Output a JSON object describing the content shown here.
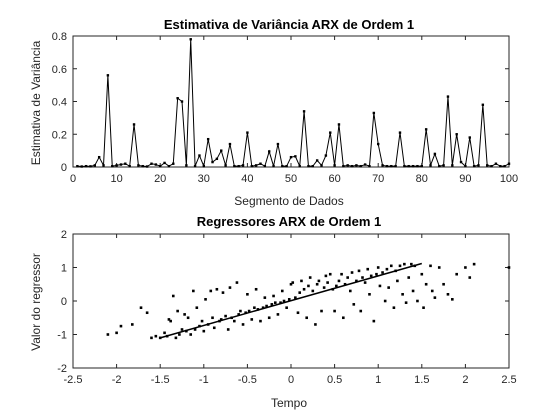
{
  "chart_data": [
    {
      "type": "line",
      "title": "Estimativa de Variância ARX de Ordem 1",
      "xlabel": "Segmento de Dados",
      "ylabel": "Estimativa de Variância",
      "xlim": [
        0,
        100
      ],
      "ylim": [
        0,
        0.8
      ],
      "xticks": [
        0,
        10,
        20,
        30,
        40,
        50,
        60,
        70,
        80,
        90,
        100
      ],
      "yticks": [
        0,
        0.2,
        0.4,
        0.6,
        0.8
      ],
      "grid": false,
      "marker": "dot",
      "x": [
        1,
        2,
        3,
        4,
        5,
        6,
        7,
        8,
        9,
        10,
        11,
        12,
        13,
        14,
        15,
        16,
        17,
        18,
        19,
        20,
        21,
        22,
        23,
        24,
        25,
        26,
        27,
        28,
        29,
        30,
        31,
        32,
        33,
        34,
        35,
        36,
        37,
        38,
        39,
        40,
        41,
        42,
        43,
        44,
        45,
        46,
        47,
        48,
        49,
        50,
        51,
        52,
        53,
        54,
        55,
        56,
        57,
        58,
        59,
        60,
        61,
        62,
        63,
        64,
        65,
        66,
        67,
        68,
        69,
        70,
        71,
        72,
        73,
        74,
        75,
        76,
        77,
        78,
        79,
        80,
        81,
        82,
        83,
        84,
        85,
        86,
        87,
        88,
        89,
        90,
        91,
        92,
        93,
        94,
        95,
        96,
        97,
        98,
        99,
        100
      ],
      "y": [
        0.005,
        0.003,
        0.005,
        0.004,
        0.01,
        0.06,
        0.01,
        0.56,
        0.005,
        0.01,
        0.015,
        0.02,
        0.005,
        0.26,
        0.01,
        0.005,
        0.003,
        0.02,
        0.015,
        0.005,
        0.025,
        0.005,
        0.02,
        0.42,
        0.4,
        0.01,
        0.78,
        0.005,
        0.07,
        0.005,
        0.17,
        0.03,
        0.05,
        0.1,
        0.01,
        0.14,
        0.005,
        0.005,
        0.01,
        0.21,
        0.005,
        0.01,
        0.02,
        0.005,
        0.095,
        0.005,
        0.14,
        0.005,
        0.005,
        0.06,
        0.065,
        0.005,
        0.34,
        0.005,
        0.005,
        0.04,
        0.01,
        0.07,
        0.21,
        0.01,
        0.26,
        0.005,
        0.01,
        0.005,
        0.01,
        0.005,
        0.015,
        0.005,
        0.33,
        0.14,
        0.01,
        0.005,
        0.005,
        0.005,
        0.21,
        0.005,
        0.005,
        0.005,
        0.005,
        0.005,
        0.23,
        0.01,
        0.08,
        0.005,
        0.01,
        0.43,
        0.01,
        0.2,
        0.03,
        0.005,
        0.18,
        0.005,
        0.01,
        0.38,
        0.01,
        0.005,
        0.02,
        0.005,
        0.005,
        0.02
      ]
    },
    {
      "type": "scatter",
      "title": "Regressores ARX de Ordem 1",
      "xlabel": "Tempo",
      "ylabel": "Valor do regressor",
      "xlim": [
        -2.5,
        2.5
      ],
      "ylim": [
        -2,
        2
      ],
      "xticks": [
        -2.5,
        -2,
        -1.5,
        -1,
        -0.5,
        0,
        0.5,
        1,
        1.5,
        2,
        2.5
      ],
      "yticks": [
        -2,
        -1,
        0,
        1,
        2
      ],
      "grid": false,
      "marker": "dot",
      "trend": {
        "x": [
          -1.5,
          1.5
        ],
        "y": [
          -1.1,
          1.12
        ]
      },
      "points": [
        [
          -2.1,
          -1.0
        ],
        [
          -2.0,
          -0.95
        ],
        [
          -1.95,
          -0.75
        ],
        [
          -1.82,
          -0.7
        ],
        [
          -1.72,
          -0.2
        ],
        [
          -1.65,
          -0.35
        ],
        [
          -1.6,
          -1.1
        ],
        [
          -1.55,
          -1.05
        ],
        [
          -1.5,
          -1.1
        ],
        [
          -1.45,
          -0.95
        ],
        [
          -1.42,
          -1.05
        ],
        [
          -1.4,
          -0.55
        ],
        [
          -1.38,
          -0.6
        ],
        [
          -1.35,
          0.15
        ],
        [
          -1.32,
          -1.1
        ],
        [
          -1.3,
          -0.3
        ],
        [
          -1.28,
          -1.0
        ],
        [
          -1.25,
          -0.85
        ],
        [
          -1.22,
          -0.4
        ],
        [
          -1.2,
          -0.9
        ],
        [
          -1.18,
          -0.5
        ],
        [
          -1.15,
          -1.0
        ],
        [
          -1.12,
          0.3
        ],
        [
          -1.1,
          -0.85
        ],
        [
          -1.08,
          -0.2
        ],
        [
          -1.05,
          -0.75
        ],
        [
          -1.02,
          -0.6
        ],
        [
          -1.0,
          -0.9
        ],
        [
          -0.98,
          0.05
        ],
        [
          -0.95,
          -0.7
        ],
        [
          -0.92,
          0.3
        ],
        [
          -0.9,
          -0.5
        ],
        [
          -0.88,
          -0.8
        ],
        [
          -0.85,
          0.35
        ],
        [
          -0.82,
          -0.6
        ],
        [
          -0.8,
          -0.55
        ],
        [
          -0.78,
          0.25
        ],
        [
          -0.75,
          -0.45
        ],
        [
          -0.72,
          -0.85
        ],
        [
          -0.7,
          0.4
        ],
        [
          -0.68,
          -0.5
        ],
        [
          -0.65,
          -0.6
        ],
        [
          -0.62,
          0.55
        ],
        [
          -0.6,
          -0.4
        ],
        [
          -0.58,
          -0.3
        ],
        [
          -0.55,
          -0.7
        ],
        [
          -0.52,
          -0.35
        ],
        [
          -0.5,
          0.2
        ],
        [
          -0.48,
          -0.3
        ],
        [
          -0.45,
          -0.55
        ],
        [
          -0.42,
          -0.2
        ],
        [
          -0.4,
          0.35
        ],
        [
          -0.38,
          -0.25
        ],
        [
          -0.35,
          -0.6
        ],
        [
          -0.32,
          -0.2
        ],
        [
          -0.3,
          0.1
        ],
        [
          -0.28,
          -0.15
        ],
        [
          -0.25,
          -0.5
        ],
        [
          -0.22,
          -0.1
        ],
        [
          -0.2,
          0.15
        ],
        [
          -0.18,
          -0.05
        ],
        [
          -0.15,
          -0.4
        ],
        [
          -0.12,
          -0.05
        ],
        [
          -0.1,
          0.3
        ],
        [
          -0.08,
          0.0
        ],
        [
          -0.05,
          -0.2
        ],
        [
          -0.02,
          0.05
        ],
        [
          0.0,
          0.5
        ],
        [
          0.02,
          0.55
        ],
        [
          0.05,
          0.1
        ],
        [
          0.08,
          -0.35
        ],
        [
          0.1,
          0.25
        ],
        [
          0.12,
          0.6
        ],
        [
          0.15,
          0.35
        ],
        [
          0.18,
          -0.5
        ],
        [
          0.2,
          0.45
        ],
        [
          0.22,
          0.7
        ],
        [
          0.25,
          0.3
        ],
        [
          0.28,
          -0.7
        ],
        [
          0.3,
          0.5
        ],
        [
          0.32,
          0.6
        ],
        [
          0.35,
          -0.3
        ],
        [
          0.38,
          0.4
        ],
        [
          0.4,
          0.75
        ],
        [
          0.42,
          0.55
        ],
        [
          0.45,
          0.8
        ],
        [
          0.48,
          0.35
        ],
        [
          0.5,
          -0.3
        ],
        [
          0.52,
          0.45
        ],
        [
          0.55,
          0.6
        ],
        [
          0.58,
          0.8
        ],
        [
          0.6,
          -0.5
        ],
        [
          0.62,
          0.5
        ],
        [
          0.65,
          0.7
        ],
        [
          0.68,
          0.3
        ],
        [
          0.7,
          0.85
        ],
        [
          0.72,
          -0.1
        ],
        [
          0.75,
          0.6
        ],
        [
          0.78,
          0.9
        ],
        [
          0.8,
          -0.3
        ],
        [
          0.82,
          0.7
        ],
        [
          0.85,
          0.55
        ],
        [
          0.88,
          0.95
        ],
        [
          0.9,
          0.2
        ],
        [
          0.92,
          0.75
        ],
        [
          0.95,
          -0.6
        ],
        [
          0.98,
          0.8
        ],
        [
          1.0,
          1.0
        ],
        [
          1.02,
          0.45
        ],
        [
          1.05,
          0.85
        ],
        [
          1.08,
          0.0
        ],
        [
          1.1,
          0.95
        ],
        [
          1.12,
          0.4
        ],
        [
          1.15,
          1.05
        ],
        [
          1.18,
          -0.2
        ],
        [
          1.2,
          0.9
        ],
        [
          1.22,
          0.6
        ],
        [
          1.25,
          1.05
        ],
        [
          1.28,
          0.2
        ],
        [
          1.3,
          1.1
        ],
        [
          1.32,
          -0.05
        ],
        [
          1.35,
          0.7
        ],
        [
          1.38,
          1.1
        ],
        [
          1.4,
          0.3
        ],
        [
          1.42,
          1.05
        ],
        [
          1.45,
          0.0
        ],
        [
          1.5,
          0.8
        ],
        [
          1.52,
          -0.2
        ],
        [
          1.55,
          0.5
        ],
        [
          1.6,
          1.05
        ],
        [
          1.62,
          0.3
        ],
        [
          1.65,
          0.1
        ],
        [
          1.7,
          1.0
        ],
        [
          1.75,
          0.5
        ],
        [
          1.8,
          0.2
        ],
        [
          1.85,
          0.05
        ],
        [
          1.9,
          0.8
        ],
        [
          2.0,
          1.0
        ],
        [
          2.05,
          0.7
        ],
        [
          2.1,
          1.1
        ],
        [
          2.5,
          1.0
        ]
      ]
    }
  ]
}
